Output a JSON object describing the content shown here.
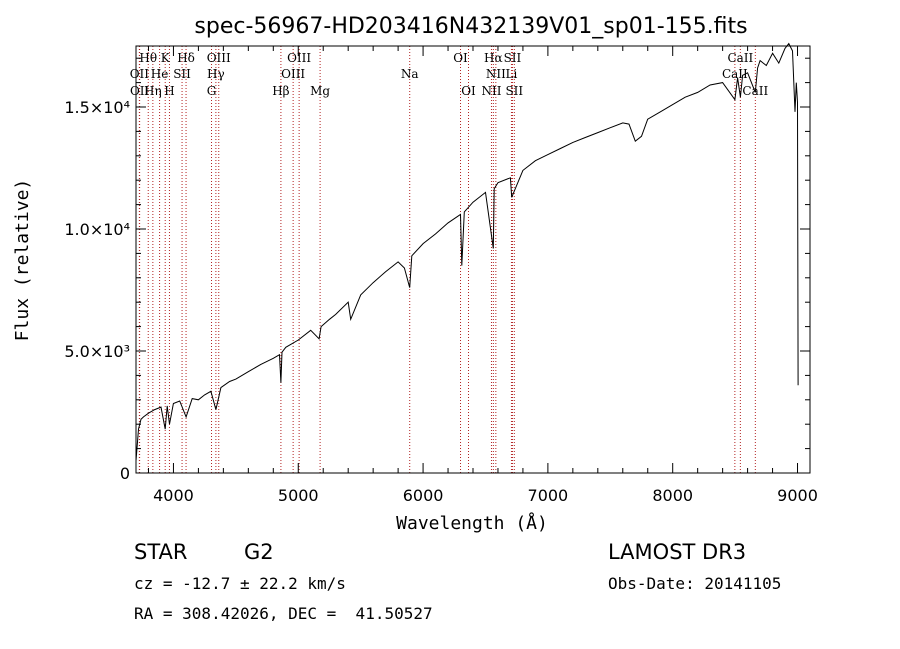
{
  "chart_data": {
    "type": "line",
    "title": "spec-56967-HD203416N432139V01_sp01-155.fits",
    "xlabel": "Wavelength (Å)",
    "ylabel": "Flux (relative)",
    "xlim": [
      3700,
      9100
    ],
    "ylim": [
      0,
      17500
    ],
    "xticks": [
      {
        "value": 4000,
        "label": "4000"
      },
      {
        "value": 5000,
        "label": "5000"
      },
      {
        "value": 6000,
        "label": "6000"
      },
      {
        "value": 7000,
        "label": "7000"
      },
      {
        "value": 8000,
        "label": "8000"
      },
      {
        "value": 9000,
        "label": "9000"
      }
    ],
    "yticks": [
      {
        "value": 0,
        "label": "0"
      },
      {
        "value": 5000,
        "label": "5.0×10³"
      },
      {
        "value": 10000,
        "label": "1.0×10⁴"
      },
      {
        "value": 15000,
        "label": "1.5×10⁴"
      }
    ],
    "series": [
      {
        "name": "Flux",
        "x": [
          3700,
          3720,
          3740,
          3760,
          3800,
          3850,
          3900,
          3934,
          3950,
          3968,
          4000,
          4050,
          4101,
          4150,
          4200,
          4250,
          4300,
          4340,
          4380,
          4450,
          4500,
          4600,
          4700,
          4800,
          4850,
          4861,
          4870,
          4900,
          5000,
          5100,
          5167,
          5183,
          5250,
          5300,
          5400,
          5420,
          5500,
          5600,
          5700,
          5800,
          5850,
          5893,
          5910,
          6000,
          6100,
          6200,
          6300,
          6310,
          6330,
          6400,
          6500,
          6563,
          6570,
          6600,
          6700,
          6710,
          6800,
          6900,
          7000,
          7100,
          7200,
          7300,
          7400,
          7500,
          7600,
          7650,
          7700,
          7750,
          7800,
          7900,
          8000,
          8100,
          8200,
          8300,
          8400,
          8498,
          8520,
          8542,
          8560,
          8600,
          8662,
          8680,
          8700,
          8750,
          8800,
          8850,
          8900,
          8930,
          8960,
          8980,
          8990,
          9000,
          9005
        ],
        "y": [
          500,
          1800,
          2200,
          2300,
          2450,
          2600,
          2700,
          1800,
          2750,
          2000,
          2850,
          2950,
          2300,
          3050,
          3000,
          3200,
          3350,
          2600,
          3500,
          3750,
          3850,
          4150,
          4450,
          4700,
          4850,
          3700,
          4950,
          5150,
          5450,
          5850,
          5500,
          6000,
          6300,
          6500,
          7000,
          6300,
          7300,
          7800,
          8250,
          8650,
          8400,
          7600,
          8900,
          9400,
          9800,
          10250,
          10600,
          8500,
          10700,
          11100,
          11500,
          9200,
          11650,
          11900,
          12100,
          11300,
          12400,
          12800,
          13050,
          13300,
          13550,
          13750,
          13950,
          14150,
          14350,
          14300,
          13600,
          13800,
          14500,
          14800,
          15100,
          15400,
          15600,
          15900,
          16000,
          15300,
          16200,
          15400,
          16300,
          16400,
          15600,
          16600,
          16900,
          16700,
          17200,
          16800,
          17400,
          17600,
          17300,
          14800,
          16000,
          15200,
          3600
        ]
      }
    ],
    "line_markers": [
      {
        "name": "Hθ",
        "wavelength": 3798,
        "row": 0
      },
      {
        "name": "K",
        "wavelength": 3934,
        "row": 0
      },
      {
        "name": "Hδ",
        "wavelength": 4101,
        "row": 0
      },
      {
        "name": "OIII",
        "wavelength": 4363,
        "row": 0
      },
      {
        "name": "OIII",
        "wavelength": 5007,
        "row": 0
      },
      {
        "name": "OI",
        "wavelength": 6300,
        "row": 0
      },
      {
        "name": "Hα",
        "wavelength": 6563,
        "row": 0
      },
      {
        "name": "SII",
        "wavelength": 6716,
        "row": 0
      },
      {
        "name": "CaII",
        "wavelength": 8542,
        "row": 0
      },
      {
        "name": "OII",
        "wavelength": 3727,
        "row": 1
      },
      {
        "name": "He",
        "wavelength": 3889,
        "row": 1
      },
      {
        "name": "SII",
        "wavelength": 4069,
        "row": 1
      },
      {
        "name": "Hγ",
        "wavelength": 4340,
        "row": 1
      },
      {
        "name": "OIII",
        "wavelength": 4959,
        "row": 1
      },
      {
        "name": "Na",
        "wavelength": 5893,
        "row": 1
      },
      {
        "name": "NII",
        "wavelength": 6583,
        "row": 1
      },
      {
        "name": "Li",
        "wavelength": 6708,
        "row": 1
      },
      {
        "name": "CaII",
        "wavelength": 8498,
        "row": 1
      },
      {
        "name": "OII",
        "wavelength": 3729,
        "row": 2
      },
      {
        "name": "Hη",
        "wavelength": 3835,
        "row": 2
      },
      {
        "name": "H",
        "wavelength": 3968,
        "row": 2
      },
      {
        "name": "G",
        "wavelength": 4305,
        "row": 2
      },
      {
        "name": "Hβ",
        "wavelength": 4861,
        "row": 2
      },
      {
        "name": "Mg",
        "wavelength": 5175,
        "row": 2
      },
      {
        "name": "OI",
        "wavelength": 6364,
        "row": 2
      },
      {
        "name": "NII",
        "wavelength": 6548,
        "row": 2
      },
      {
        "name": "SII",
        "wavelength": 6731,
        "row": 2
      },
      {
        "name": "CaII",
        "wavelength": 8662,
        "row": 2
      }
    ]
  },
  "info": {
    "object_class": "STAR",
    "subclass": "G2",
    "survey": "LAMOST DR3",
    "redshift": "cz = -12.7 ± 22.2 km/s",
    "obs_date": "Obs-Date: 20141105",
    "coordinates": "RA = 308.42026, DEC =  41.50527"
  },
  "colors": {
    "marker_line": "#b22222",
    "spectrum": "#000000",
    "axes": "#000000"
  }
}
